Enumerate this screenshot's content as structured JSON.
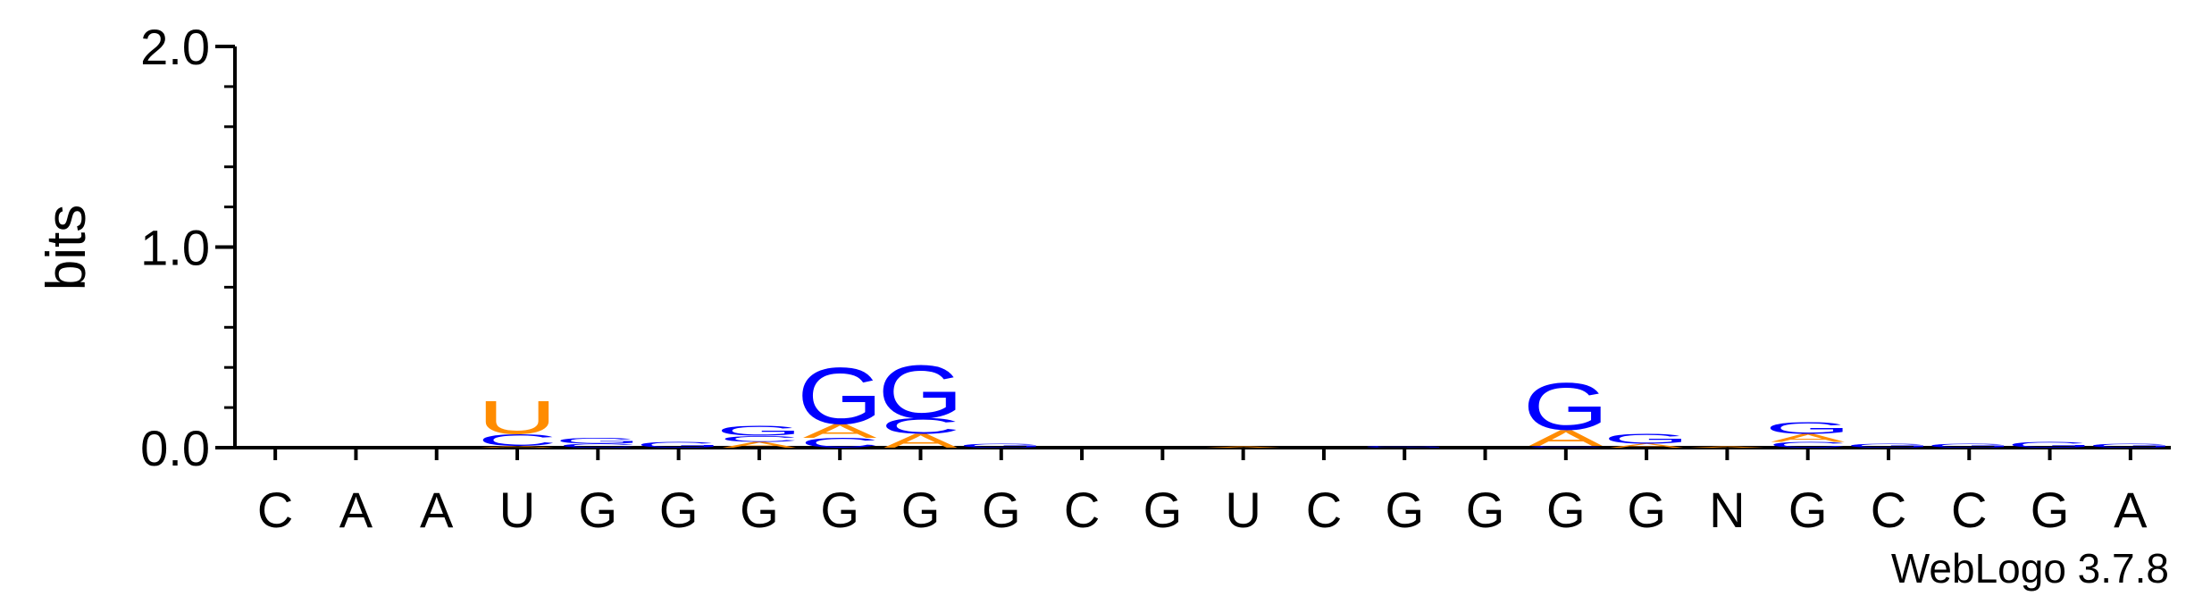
{
  "chart_data": {
    "type": "sequence-logo",
    "ylabel": "bits",
    "ylim": [
      0,
      2
    ],
    "yticks": [
      {
        "value": 0,
        "label": "0.0"
      },
      {
        "value": 1,
        "label": "1.0"
      },
      {
        "value": 2,
        "label": "2.0"
      }
    ],
    "positions": [
      "C",
      "A",
      "A",
      "U",
      "G",
      "G",
      "G",
      "G",
      "G",
      "G",
      "C",
      "G",
      "U",
      "C",
      "G",
      "G",
      "G",
      "G",
      "N",
      "G",
      "C",
      "C",
      "G",
      "A"
    ],
    "stacks": [
      [],
      [],
      [],
      [
        {
          "letter": "A",
          "bits": 0.01
        },
        {
          "letter": "C",
          "bits": 0.06
        },
        {
          "letter": "U",
          "bits": 0.17
        }
      ],
      [
        {
          "letter": "C",
          "bits": 0.02
        },
        {
          "letter": "G",
          "bits": 0.03
        }
      ],
      [
        {
          "letter": "G",
          "bits": 0.03
        }
      ],
      [
        {
          "letter": "A",
          "bits": 0.03
        },
        {
          "letter": "C",
          "bits": 0.03
        },
        {
          "letter": "G",
          "bits": 0.05
        }
      ],
      [
        {
          "letter": "C",
          "bits": 0.05
        },
        {
          "letter": "A",
          "bits": 0.07
        },
        {
          "letter": "G",
          "bits": 0.29
        }
      ],
      [
        {
          "letter": "A",
          "bits": 0.07
        },
        {
          "letter": "C",
          "bits": 0.08
        },
        {
          "letter": "G",
          "bits": 0.27
        }
      ],
      [
        {
          "letter": "G",
          "bits": 0.02
        }
      ],
      [],
      [],
      [
        {
          "letter": "A",
          "bits": 0.005
        }
      ],
      [],
      [
        {
          "letter": "G",
          "bits": 0.01
        }
      ],
      [],
      [
        {
          "letter": "C",
          "bits": 0.01
        },
        {
          "letter": "A",
          "bits": 0.08
        },
        {
          "letter": "G",
          "bits": 0.24
        }
      ],
      [
        {
          "letter": "A",
          "bits": 0.02
        },
        {
          "letter": "G",
          "bits": 0.05
        }
      ],
      [
        {
          "letter": "A",
          "bits": 0.005
        }
      ],
      [
        {
          "letter": "C",
          "bits": 0.03
        },
        {
          "letter": "A",
          "bits": 0.04
        },
        {
          "letter": "G",
          "bits": 0.06
        }
      ],
      [
        {
          "letter": "G",
          "bits": 0.02
        }
      ],
      [
        {
          "letter": "G",
          "bits": 0.02
        }
      ],
      [
        {
          "letter": "G",
          "bits": 0.03
        }
      ],
      [
        {
          "letter": "G",
          "bits": 0.02
        }
      ]
    ],
    "colors": {
      "A": "#ff8c00",
      "C": "#0000ff",
      "G": "#0000ff",
      "U": "#ff8c00",
      "N": "#000000"
    },
    "credit": "WebLogo 3.7.8"
  }
}
